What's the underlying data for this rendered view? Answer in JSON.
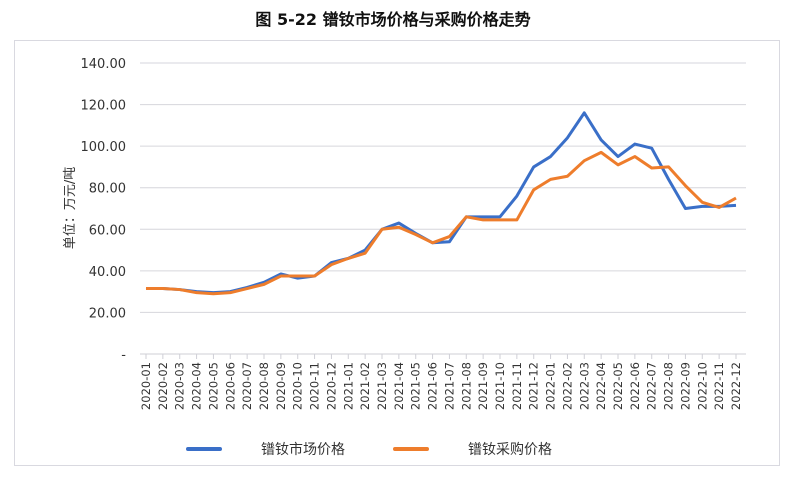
{
  "chart_data": {
    "type": "line",
    "title": "图 5-22  镨钕市场价格与采购价格走势",
    "ylabel": "单位：万元/吨",
    "xlabel": "",
    "ylim": [
      0,
      140
    ],
    "yticks": [
      "-",
      "20.00",
      "40.00",
      "60.00",
      "80.00",
      "100.00",
      "120.00",
      "140.00"
    ],
    "grid": true,
    "legend": "bottom",
    "categories": [
      "2020-01",
      "2020-02",
      "2020-03",
      "2020-04",
      "2020-05",
      "2020-06",
      "2020-07",
      "2020-08",
      "2020-09",
      "2020-10",
      "2020-11",
      "2020-12",
      "2021-01",
      "2021-02",
      "2021-03",
      "2021-04",
      "2021-05",
      "2021-06",
      "2021-07",
      "2021-08",
      "2021-09",
      "2021-10",
      "2021-11",
      "2021-12",
      "2022-01",
      "2022-02",
      "2022-03",
      "2022-04",
      "2022-05",
      "2022-06",
      "2022-07",
      "2022-08",
      "2022-09",
      "2022-10",
      "2022-11",
      "2022-12"
    ],
    "series": [
      {
        "name": "镨钕市场价格",
        "color": "#3a6fc8",
        "values": [
          31.5,
          31.5,
          31,
          30,
          29.5,
          30,
          32,
          34.5,
          38.5,
          36.5,
          37.5,
          44,
          46,
          50,
          60,
          63,
          58,
          53.5,
          54,
          66,
          66,
          66,
          76,
          90,
          95,
          104,
          116,
          103,
          95,
          101,
          99,
          84,
          70,
          71,
          71,
          71.5
        ]
      },
      {
        "name": "镨钕采购价格",
        "color": "#ee7d2c",
        "values": [
          31.5,
          31.5,
          31,
          29.5,
          29,
          29.5,
          31.5,
          33.5,
          37.5,
          37.5,
          37.5,
          43,
          46,
          48.5,
          60,
          61,
          57.5,
          53.5,
          56.5,
          66,
          64.5,
          64.5,
          64.5,
          79,
          84,
          85.5,
          93,
          97,
          91,
          95,
          89.5,
          90,
          81,
          73,
          70.5,
          75
        ]
      }
    ]
  }
}
